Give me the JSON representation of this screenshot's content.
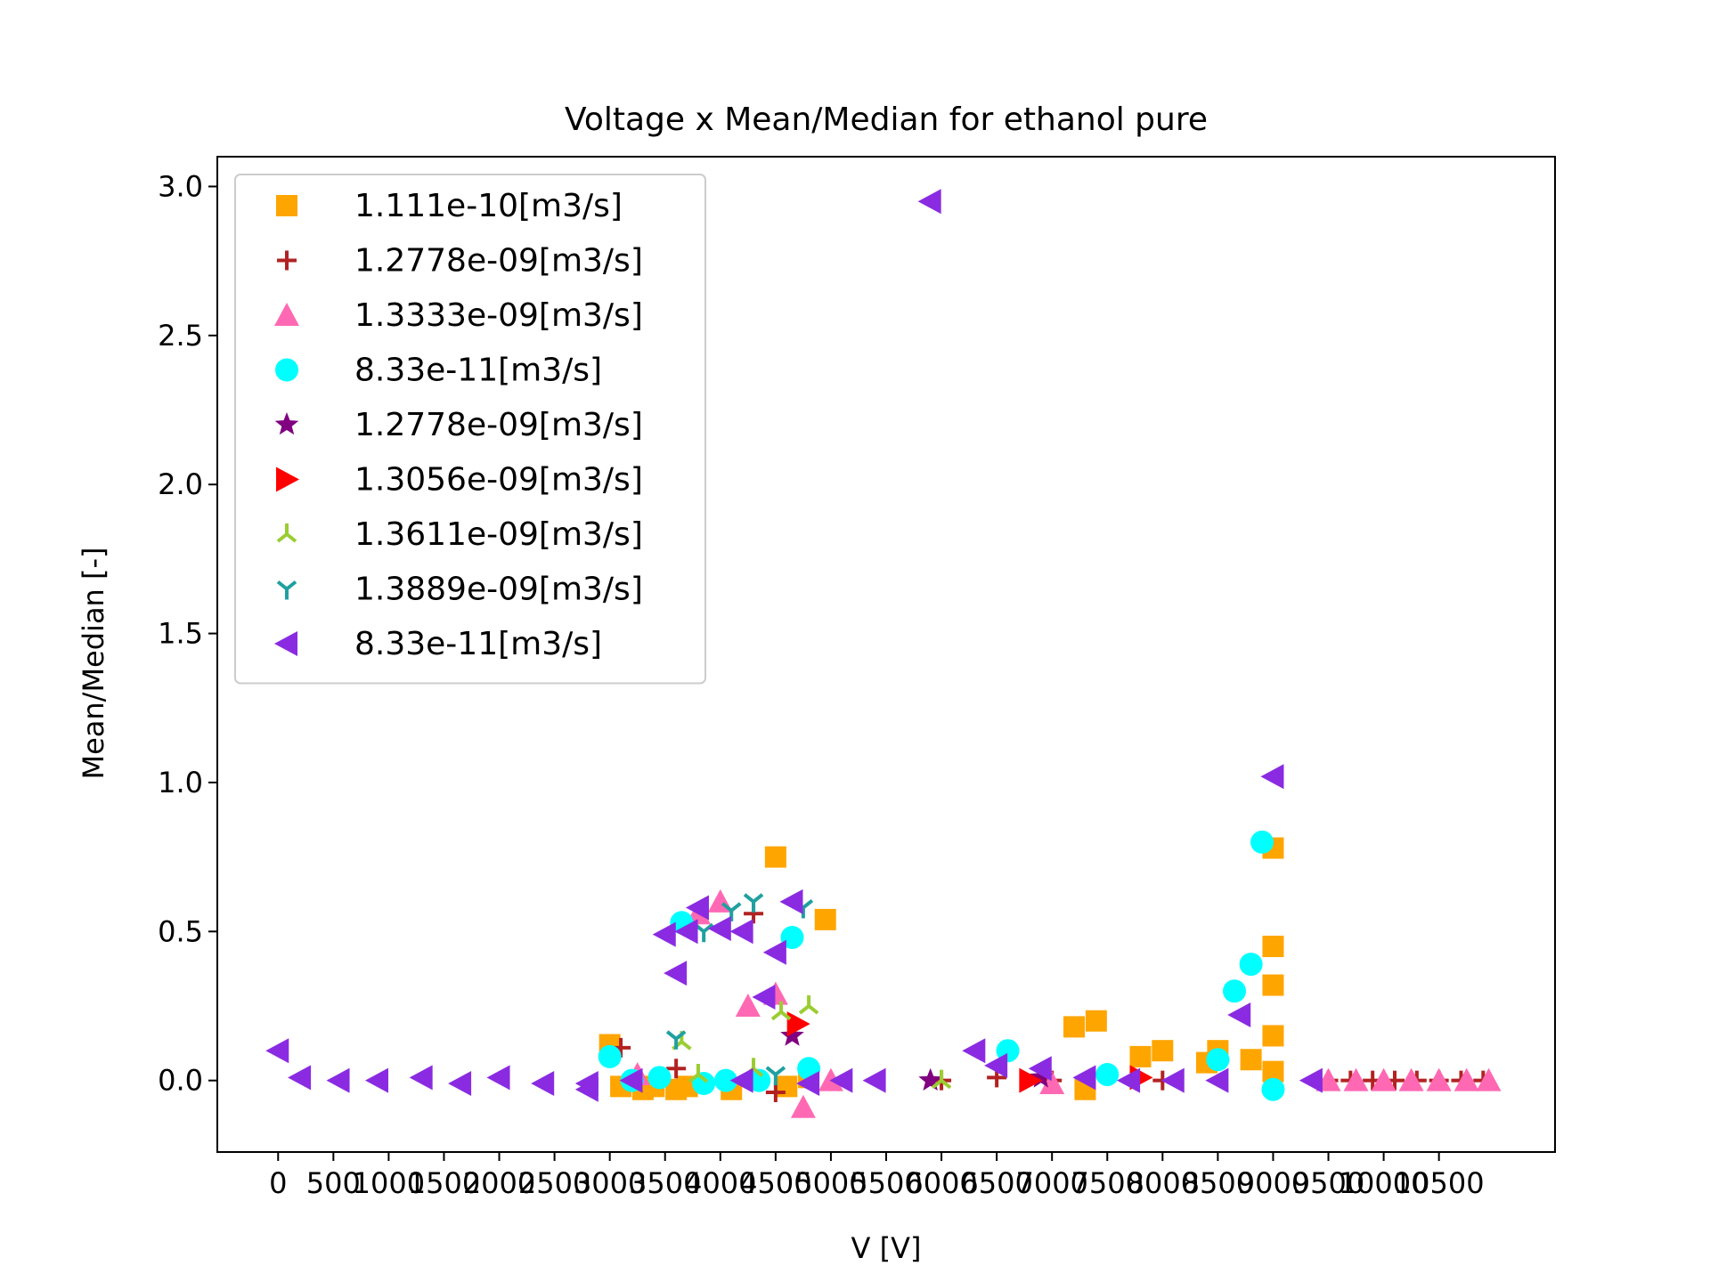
{
  "chart_data": {
    "type": "scatter",
    "title": "Voltage x Mean/Median for ethanol pure",
    "xlabel": "V [V]",
    "ylabel": "Mean/Median [-]",
    "xlim": [
      -550,
      11550
    ],
    "ylim": [
      -0.24,
      3.1
    ],
    "x_ticks": [
      0,
      500,
      1000,
      1500,
      2000,
      2500,
      3000,
      3500,
      4000,
      4500,
      5000,
      5500,
      6000,
      6500,
      7000,
      7500,
      8000,
      8500,
      9000,
      9500,
      10000,
      10500
    ],
    "x_tick_labels": [
      "0",
      "500",
      "1000",
      "1500",
      "2000",
      "2500",
      "3000",
      "3500",
      "4000",
      "4500",
      "5000",
      "5500",
      "6000",
      "6500",
      "7000",
      "7500",
      "8000",
      "8500",
      "9000",
      "9500",
      "10000",
      "10500"
    ],
    "y_ticks": [
      0.0,
      0.5,
      1.0,
      1.5,
      2.0,
      2.5,
      3.0
    ],
    "y_tick_labels": [
      "0.0",
      "0.5",
      "1.0",
      "1.5",
      "2.0",
      "2.5",
      "3.0"
    ],
    "legend_position": "top-left",
    "series": [
      {
        "name": "1.111e-10[m3/s]",
        "marker": "square",
        "color": "#FFA500",
        "x": [
          3000,
          3100,
          3300,
          3400,
          3600,
          3700,
          4100,
          4500,
          4600,
          4800,
          4950,
          7200,
          7300,
          7400,
          7800,
          8000,
          8400,
          8500,
          8800,
          9000,
          9000,
          9000,
          9000,
          9000
        ],
        "y": [
          0.12,
          -0.02,
          -0.03,
          -0.02,
          -0.03,
          -0.02,
          -0.03,
          0.75,
          -0.02,
          0.01,
          0.54,
          0.18,
          -0.03,
          0.2,
          0.08,
          0.1,
          0.06,
          0.1,
          0.07,
          0.78,
          0.45,
          0.32,
          0.15,
          0.03
        ]
      },
      {
        "name": "1.2778e-09[m3/s]",
        "marker": "plus",
        "color": "#B22222",
        "x": [
          3100,
          3600,
          4300,
          4500,
          6000,
          6500,
          7000,
          8000,
          9500,
          9700,
          9900,
          10100,
          10300,
          10500,
          10700,
          10900
        ],
        "y": [
          0.11,
          0.04,
          0.56,
          -0.04,
          0.0,
          0.01,
          0.0,
          0.0,
          0.0,
          0.0,
          0.0,
          0.0,
          0.0,
          0.0,
          0.0,
          0.0
        ]
      },
      {
        "name": "1.3333e-09[m3/s]",
        "marker": "triangle-up",
        "color": "#FF69B4",
        "x": [
          3250,
          3800,
          4000,
          4250,
          4500,
          4750,
          5000,
          7000,
          9500,
          9750,
          10000,
          10250,
          10500,
          10750,
          10950
        ],
        "y": [
          0.02,
          0.56,
          0.6,
          0.25,
          0.29,
          -0.09,
          0.0,
          -0.01,
          0.0,
          0.0,
          0.0,
          0.0,
          0.0,
          0.0,
          0.0
        ]
      },
      {
        "name": "8.33e-11[m3/s]",
        "marker": "circle",
        "color": "#00FFFF",
        "x": [
          3000,
          3200,
          3450,
          3650,
          3850,
          4050,
          4350,
          4650,
          4800,
          6600,
          7500,
          8500,
          8650,
          8800,
          8900,
          9000
        ],
        "y": [
          0.08,
          0.0,
          0.01,
          0.53,
          -0.01,
          0.0,
          0.0,
          0.48,
          0.04,
          0.1,
          0.02,
          0.07,
          0.3,
          0.39,
          0.8,
          -0.03
        ]
      },
      {
        "name": "1.2778e-09[m3/s]",
        "marker": "star",
        "color": "#800080",
        "x": [
          4650,
          5900,
          6900
        ],
        "y": [
          0.15,
          0.0,
          0.01
        ]
      },
      {
        "name": "1.3056e-09[m3/s]",
        "marker": "triangle-right",
        "color": "#FF0000",
        "x": [
          4700,
          6800,
          7800
        ],
        "y": [
          0.19,
          0.0,
          0.01
        ]
      },
      {
        "name": "1.3611e-09[m3/s]",
        "marker": "tri-down",
        "color": "#9ACD32",
        "x": [
          3650,
          3800,
          4300,
          4550,
          4800,
          6000
        ],
        "y": [
          0.13,
          0.02,
          0.04,
          0.23,
          0.25,
          0.0
        ]
      },
      {
        "name": "1.3889e-09[m3/s]",
        "marker": "tri-up",
        "color": "#20A0A0",
        "x": [
          3600,
          3850,
          4100,
          4300,
          4500,
          4750
        ],
        "y": [
          0.14,
          0.5,
          0.57,
          0.6,
          0.02,
          0.58
        ]
      },
      {
        "name": "8.33e-11[m3/s]",
        "marker": "triangle-left",
        "color": "#8A2BE2",
        "x": [
          0,
          200,
          550,
          900,
          1300,
          1650,
          2000,
          2400,
          2800,
          2800,
          3200,
          3500,
          3600,
          3700,
          3800,
          4000,
          4200,
          4200,
          4400,
          4500,
          4650,
          4800,
          5100,
          5400,
          5900,
          6300,
          6500,
          6900,
          7300,
          7700,
          8100,
          8500,
          8700,
          9000,
          9350
        ],
        "y": [
          0.1,
          0.01,
          0.0,
          0.0,
          0.01,
          -0.01,
          0.01,
          -0.01,
          -0.01,
          -0.03,
          0.0,
          0.49,
          0.36,
          0.5,
          0.58,
          0.51,
          0.0,
          0.5,
          0.28,
          0.43,
          0.6,
          -0.01,
          0.0,
          0.0,
          2.95,
          0.1,
          0.05,
          0.04,
          0.01,
          0.0,
          0.0,
          0.0,
          0.22,
          1.02,
          0.0
        ]
      }
    ]
  }
}
